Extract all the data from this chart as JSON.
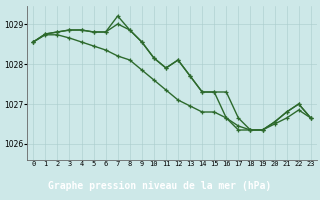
{
  "title": "Graphe pression niveau de la mer (hPa)",
  "bg_plot": "#cde8e8",
  "bg_label": "#4a9a4a",
  "grid_color": "#aacccc",
  "line_color": "#2d6a2d",
  "hours": [
    0,
    1,
    2,
    3,
    4,
    5,
    6,
    7,
    8,
    9,
    10,
    11,
    12,
    13,
    14,
    15,
    16,
    17,
    18,
    19,
    20,
    21,
    22,
    23
  ],
  "line1": [
    1028.55,
    1028.75,
    1028.8,
    1028.85,
    1028.85,
    1028.8,
    1028.8,
    1029.2,
    1028.85,
    1028.55,
    1028.15,
    1027.9,
    1028.1,
    1027.7,
    1027.3,
    1027.3,
    1027.3,
    1026.65,
    1026.35,
    1026.35,
    1026.55,
    1026.8,
    1027.0,
    1026.65
  ],
  "line2": [
    1028.55,
    1028.75,
    1028.8,
    1028.85,
    1028.85,
    1028.8,
    1028.8,
    1029.0,
    1028.85,
    1028.55,
    1028.15,
    1027.9,
    1028.1,
    1027.7,
    1027.3,
    1027.3,
    1026.65,
    1026.35,
    1026.35,
    1026.35,
    1026.55,
    1026.8,
    1027.0,
    1026.65
  ],
  "line3": [
    1028.55,
    1028.73,
    1028.73,
    1028.65,
    1028.55,
    1028.45,
    1028.35,
    1028.2,
    1028.1,
    1027.85,
    1027.6,
    1027.35,
    1027.1,
    1026.95,
    1026.8,
    1026.8,
    1026.65,
    1026.45,
    1026.35,
    1026.35,
    1026.5,
    1026.65,
    1026.85,
    1026.65
  ],
  "ylim_min": 1025.6,
  "ylim_max": 1029.45,
  "yticks": [
    1026,
    1027,
    1028,
    1029
  ],
  "marker": "+",
  "marker_size": 3.5,
  "line_width": 1.0
}
